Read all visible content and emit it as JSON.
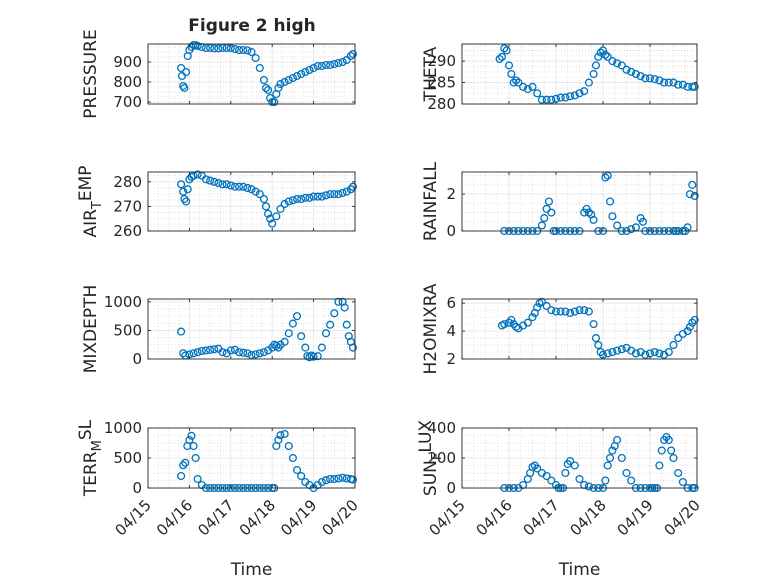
{
  "figure_title": "Figure 2 high",
  "colors": {
    "marker": "#0072BD",
    "axis": "#262626",
    "grid": "#d9d9d9",
    "background": "#ffffff"
  },
  "chart_data": [
    {
      "type": "scatter",
      "ylabel": "PRESSURE",
      "title": "Figure 2 high",
      "ylim": [
        690,
        990
      ],
      "yticks": [
        700,
        800,
        900
      ],
      "xlim": [
        0,
        5
      ],
      "xtick_labels": [],
      "x": [
        0.8,
        0.82,
        0.85,
        0.88,
        0.92,
        0.96,
        1.0,
        1.05,
        1.1,
        1.15,
        1.2,
        1.3,
        1.4,
        1.5,
        1.6,
        1.7,
        1.8,
        1.9,
        2.0,
        2.1,
        2.2,
        2.3,
        2.4,
        2.5,
        2.6,
        2.7,
        2.8,
        2.85,
        2.9,
        2.95,
        3.0,
        3.05,
        3.1,
        3.15,
        3.2,
        3.3,
        3.4,
        3.5,
        3.6,
        3.7,
        3.8,
        3.9,
        4.0,
        4.1,
        4.2,
        4.3,
        4.4,
        4.5,
        4.6,
        4.7,
        4.8,
        4.9,
        4.95
      ],
      "y": [
        870,
        830,
        780,
        770,
        850,
        930,
        960,
        975,
        985,
        985,
        980,
        975,
        970,
        970,
        968,
        968,
        970,
        970,
        970,
        965,
        960,
        960,
        958,
        950,
        920,
        870,
        810,
        770,
        760,
        720,
        700,
        700,
        740,
        770,
        790,
        800,
        810,
        820,
        830,
        840,
        850,
        860,
        870,
        880,
        880,
        885,
        885,
        890,
        895,
        900,
        910,
        930,
        940
      ]
    },
    {
      "type": "scatter",
      "ylabel": "THETA",
      "ylim": [
        280,
        294
      ],
      "yticks": [
        280,
        285,
        290
      ],
      "xlim": [
        0,
        5
      ],
      "xtick_labels": [],
      "x": [
        0.8,
        0.85,
        0.9,
        0.95,
        1.0,
        1.05,
        1.1,
        1.15,
        1.2,
        1.3,
        1.4,
        1.5,
        1.6,
        1.7,
        1.8,
        1.9,
        2.0,
        2.1,
        2.2,
        2.3,
        2.4,
        2.5,
        2.6,
        2.7,
        2.8,
        2.85,
        2.9,
        2.95,
        3.0,
        3.05,
        3.1,
        3.2,
        3.3,
        3.4,
        3.5,
        3.6,
        3.7,
        3.8,
        3.9,
        4.0,
        4.1,
        4.2,
        4.3,
        4.4,
        4.5,
        4.6,
        4.7,
        4.8,
        4.9,
        4.95
      ],
      "y": [
        290.5,
        291,
        293,
        292.5,
        289,
        287,
        285,
        285.5,
        285,
        284,
        283.5,
        284,
        282.5,
        281,
        281,
        281,
        281.2,
        281.5,
        281.5,
        281.8,
        282,
        282.5,
        283,
        285,
        287,
        289,
        291,
        292,
        292.5,
        291.5,
        291,
        290,
        289.5,
        289,
        288,
        287.5,
        287,
        286.5,
        286,
        286,
        285.8,
        285.5,
        285,
        285,
        285,
        284.5,
        284.5,
        284,
        284,
        284
      ]
    },
    {
      "type": "scatter",
      "ylabel": "AIR_TEMP",
      "ylim": [
        260,
        284
      ],
      "yticks": [
        260,
        270,
        280
      ],
      "xlim": [
        0,
        5
      ],
      "xtick_labels": [],
      "x": [
        0.8,
        0.85,
        0.88,
        0.92,
        0.96,
        1.0,
        1.05,
        1.1,
        1.2,
        1.3,
        1.4,
        1.5,
        1.6,
        1.7,
        1.8,
        1.9,
        2.0,
        2.1,
        2.2,
        2.3,
        2.4,
        2.5,
        2.6,
        2.7,
        2.8,
        2.85,
        2.9,
        2.95,
        3.0,
        3.1,
        3.2,
        3.3,
        3.4,
        3.5,
        3.6,
        3.7,
        3.8,
        3.9,
        4.0,
        4.1,
        4.2,
        4.3,
        4.4,
        4.5,
        4.6,
        4.7,
        4.8,
        4.9,
        4.95
      ],
      "y": [
        279,
        276,
        273,
        272,
        277,
        281,
        282,
        282.5,
        283,
        282.5,
        281,
        280.5,
        280,
        279.5,
        279,
        279,
        278.5,
        278,
        278,
        278,
        277.5,
        277,
        276,
        275,
        273,
        270,
        267,
        265,
        263,
        266,
        269,
        271,
        272,
        272.5,
        273,
        273,
        273.5,
        273.5,
        274,
        274,
        274,
        274.5,
        275,
        275,
        275,
        275.5,
        276,
        277,
        278
      ]
    },
    {
      "type": "scatter",
      "ylabel": "RAINFALL",
      "ylim": [
        0,
        3.2
      ],
      "yticks": [
        0,
        2
      ],
      "xlim": [
        0,
        5
      ],
      "xtick_labels": [],
      "x": [
        0.9,
        1.0,
        1.1,
        1.2,
        1.3,
        1.4,
        1.5,
        1.6,
        1.7,
        1.75,
        1.8,
        1.85,
        1.9,
        1.95,
        2.0,
        2.1,
        2.2,
        2.3,
        2.4,
        2.5,
        2.6,
        2.65,
        2.7,
        2.75,
        2.8,
        2.9,
        3.0,
        3.05,
        3.1,
        3.15,
        3.2,
        3.3,
        3.4,
        3.5,
        3.6,
        3.7,
        3.8,
        3.85,
        3.9,
        4.0,
        4.1,
        4.2,
        4.3,
        4.4,
        4.5,
        4.55,
        4.6,
        4.7,
        4.75,
        4.8,
        4.85,
        4.9,
        4.95
      ],
      "y": [
        0,
        0,
        0,
        0,
        0,
        0,
        0,
        0,
        0.3,
        0.7,
        1.2,
        1.6,
        1.0,
        0,
        0,
        0,
        0,
        0,
        0,
        0,
        1.0,
        1.2,
        1.0,
        0.9,
        0.6,
        0,
        0,
        2.9,
        3.0,
        1.6,
        0.8,
        0.3,
        0,
        0,
        0.1,
        0.2,
        0.7,
        0.5,
        0,
        0,
        0,
        0,
        0,
        0,
        0,
        0,
        0,
        0,
        0,
        0.2,
        2.0,
        2.5,
        1.9
      ]
    },
    {
      "type": "scatter",
      "ylabel": "MIXDEPTH",
      "ylim": [
        0,
        1050
      ],
      "yticks": [
        0,
        500,
        1000
      ],
      "xlim": [
        0,
        5
      ],
      "xtick_labels": [],
      "x": [
        0.8,
        0.85,
        0.9,
        1.0,
        1.1,
        1.2,
        1.3,
        1.4,
        1.5,
        1.6,
        1.7,
        1.8,
        1.9,
        2.0,
        2.1,
        2.2,
        2.3,
        2.4,
        2.5,
        2.6,
        2.7,
        2.8,
        2.9,
        3.0,
        3.05,
        3.1,
        3.15,
        3.2,
        3.3,
        3.4,
        3.5,
        3.6,
        3.7,
        3.8,
        3.85,
        3.9,
        3.95,
        4.0,
        4.1,
        4.2,
        4.3,
        4.4,
        4.5,
        4.6,
        4.7,
        4.75,
        4.8,
        4.85,
        4.9,
        4.95
      ],
      "y": [
        480,
        100,
        60,
        80,
        100,
        120,
        140,
        150,
        160,
        170,
        180,
        120,
        100,
        150,
        160,
        120,
        110,
        100,
        70,
        80,
        100,
        120,
        150,
        200,
        250,
        230,
        200,
        250,
        300,
        450,
        620,
        750,
        400,
        200,
        50,
        30,
        60,
        40,
        50,
        200,
        450,
        600,
        800,
        1000,
        1000,
        900,
        600,
        400,
        300,
        200
      ]
    },
    {
      "type": "scatter",
      "ylabel": "H2OMIXRA",
      "ylim": [
        2,
        6.3
      ],
      "yticks": [
        2,
        4,
        6
      ],
      "xlim": [
        0,
        5
      ],
      "xtick_labels": [],
      "x": [
        0.85,
        0.9,
        1.0,
        1.05,
        1.1,
        1.15,
        1.2,
        1.3,
        1.4,
        1.5,
        1.55,
        1.6,
        1.65,
        1.7,
        1.8,
        1.9,
        2.0,
        2.1,
        2.2,
        2.3,
        2.4,
        2.5,
        2.6,
        2.7,
        2.8,
        2.85,
        2.9,
        2.95,
        3.0,
        3.1,
        3.2,
        3.3,
        3.4,
        3.5,
        3.6,
        3.7,
        3.8,
        3.9,
        4.0,
        4.1,
        4.2,
        4.3,
        4.4,
        4.5,
        4.6,
        4.7,
        4.8,
        4.85,
        4.9,
        4.95
      ],
      "y": [
        4.4,
        4.5,
        4.6,
        4.8,
        4.5,
        4.3,
        4.2,
        4.4,
        4.6,
        5.0,
        5.3,
        5.7,
        6.0,
        6.1,
        5.8,
        5.5,
        5.4,
        5.4,
        5.4,
        5.3,
        5.4,
        5.5,
        5.5,
        5.4,
        4.5,
        3.5,
        3.0,
        2.5,
        2.3,
        2.4,
        2.5,
        2.6,
        2.7,
        2.8,
        2.6,
        2.4,
        2.5,
        2.3,
        2.4,
        2.5,
        2.4,
        2.3,
        2.5,
        3.0,
        3.5,
        3.8,
        4.0,
        4.3,
        4.6,
        4.8
      ]
    },
    {
      "type": "scatter",
      "ylabel": "TERR_MSL",
      "ylim": [
        0,
        1000
      ],
      "yticks": [
        0,
        500,
        1000
      ],
      "xlim": [
        0,
        5
      ],
      "xtick_labels": [
        "04/15",
        "04/16",
        "04/17",
        "04/18",
        "04/19",
        "04/20"
      ],
      "xlabel": "Time",
      "x": [
        0.8,
        0.85,
        0.9,
        0.95,
        1.0,
        1.05,
        1.1,
        1.15,
        1.2,
        1.3,
        1.4,
        1.5,
        1.6,
        1.7,
        1.8,
        1.9,
        2.0,
        2.1,
        2.2,
        2.3,
        2.4,
        2.5,
        2.6,
        2.7,
        2.8,
        2.9,
        3.0,
        3.05,
        3.1,
        3.15,
        3.2,
        3.3,
        3.4,
        3.5,
        3.6,
        3.7,
        3.8,
        3.9,
        4.0,
        4.1,
        4.2,
        4.3,
        4.4,
        4.5,
        4.6,
        4.7,
        4.8,
        4.9,
        4.95
      ],
      "y": [
        200,
        380,
        420,
        700,
        800,
        870,
        700,
        500,
        150,
        50,
        0,
        0,
        0,
        0,
        0,
        0,
        0,
        0,
        0,
        0,
        0,
        0,
        0,
        0,
        0,
        0,
        0,
        0,
        700,
        800,
        880,
        900,
        700,
        500,
        300,
        200,
        100,
        50,
        0,
        50,
        100,
        130,
        150,
        150,
        160,
        170,
        160,
        150,
        140
      ]
    },
    {
      "type": "scatter",
      "ylabel": "SUN_FLUX",
      "ylim": [
        0,
        400
      ],
      "yticks": [
        0,
        200,
        400
      ],
      "xlim": [
        0,
        5
      ],
      "xtick_labels": [
        "04/15",
        "04/16",
        "04/17",
        "04/18",
        "04/19",
        "04/20"
      ],
      "xlabel": "Time",
      "x": [
        0.9,
        1.0,
        1.1,
        1.2,
        1.3,
        1.4,
        1.45,
        1.5,
        1.55,
        1.6,
        1.7,
        1.8,
        1.9,
        2.0,
        2.05,
        2.1,
        2.15,
        2.2,
        2.25,
        2.3,
        2.4,
        2.5,
        2.6,
        2.7,
        2.8,
        2.9,
        3.0,
        3.05,
        3.1,
        3.15,
        3.2,
        3.25,
        3.3,
        3.4,
        3.5,
        3.6,
        3.7,
        3.8,
        3.9,
        4.0,
        4.05,
        4.1,
        4.15,
        4.2,
        4.25,
        4.3,
        4.35,
        4.4,
        4.45,
        4.5,
        4.6,
        4.7,
        4.8,
        4.9,
        4.95
      ],
      "y": [
        0,
        0,
        0,
        0,
        20,
        60,
        100,
        140,
        150,
        130,
        100,
        80,
        50,
        20,
        0,
        0,
        0,
        100,
        160,
        180,
        150,
        60,
        20,
        10,
        0,
        0,
        0,
        50,
        150,
        200,
        250,
        280,
        320,
        200,
        100,
        50,
        0,
        0,
        0,
        0,
        0,
        0,
        0,
        150,
        250,
        320,
        340,
        320,
        250,
        200,
        100,
        40,
        0,
        0,
        0
      ]
    }
  ]
}
